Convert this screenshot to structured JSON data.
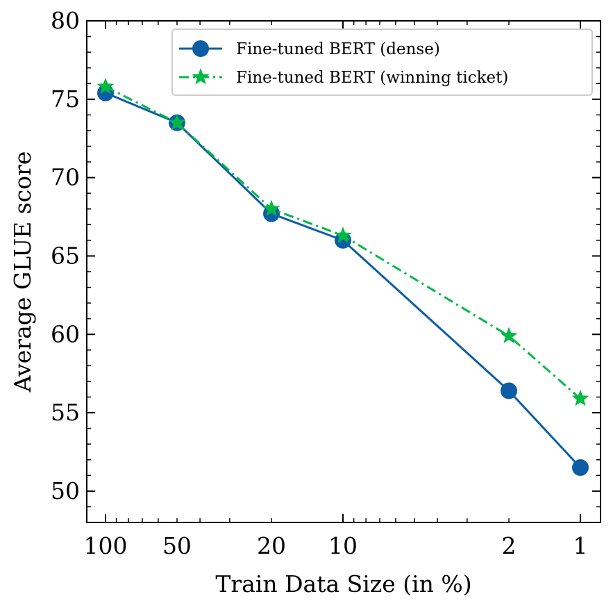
{
  "chart_data": {
    "type": "line",
    "title": "",
    "xlabel": "Train Data Size (in %)",
    "ylabel": "Average GLUE score",
    "x_scale": "log",
    "x_reversed": true,
    "x": [
      100,
      50,
      20,
      10,
      2,
      1
    ],
    "x_tick_labels": [
      "100",
      "50",
      "20",
      "10",
      "2",
      "1"
    ],
    "ylim": [
      48,
      80
    ],
    "y_ticks": [
      50,
      55,
      60,
      65,
      70,
      75,
      80
    ],
    "grid": false,
    "legend_position": "top-right",
    "series": [
      {
        "name": "Fine-tuned BERT (dense)",
        "values": [
          75.4,
          73.5,
          67.7,
          66.0,
          56.4,
          51.5
        ],
        "color": "#0C5DA5",
        "marker": "circle",
        "line_style": "solid"
      },
      {
        "name": "Fine-tuned BERT (winning ticket)",
        "values": [
          75.8,
          73.5,
          68.0,
          66.3,
          59.9,
          55.9
        ],
        "color": "#00B945",
        "marker": "star",
        "line_style": "dashdot"
      }
    ]
  }
}
